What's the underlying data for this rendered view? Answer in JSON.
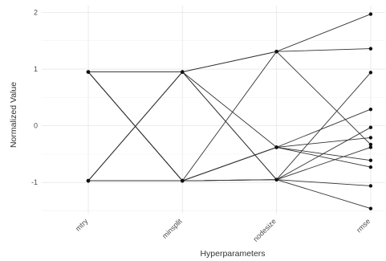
{
  "chart_data": {
    "type": "line",
    "title": "",
    "xlabel": "Hyperparameters",
    "ylabel": "Normalized Value",
    "categories": [
      "mtry",
      "minsplit",
      "nodesize",
      "rmse"
    ],
    "ylim": [
      -1.55,
      2.12
    ],
    "y_ticks": [
      -1,
      0,
      1,
      2
    ],
    "grid": true,
    "legend": "none",
    "colors": {
      "line": "#333333",
      "point": "#111111",
      "grid": "#e6e6e6"
    },
    "series": [
      {
        "values": [
          0.95,
          0.95,
          1.31,
          1.97
        ]
      },
      {
        "values": [
          0.95,
          0.95,
          1.31,
          1.36
        ]
      },
      {
        "values": [
          0.95,
          -0.97,
          1.31,
          -0.33
        ]
      },
      {
        "values": [
          0.95,
          -0.97,
          -0.38,
          -0.21
        ]
      },
      {
        "values": [
          0.95,
          -0.97,
          -0.38,
          -0.73
        ]
      },
      {
        "values": [
          0.95,
          -0.97,
          -0.95,
          0.94
        ]
      },
      {
        "values": [
          -0.97,
          0.95,
          -0.38,
          0.29
        ]
      },
      {
        "values": [
          -0.97,
          0.95,
          -0.95,
          -0.38
        ]
      },
      {
        "values": [
          -0.97,
          0.95,
          -0.95,
          -1.06
        ]
      },
      {
        "values": [
          -0.97,
          -0.97,
          -0.95,
          -1.46
        ]
      },
      {
        "values": [
          -0.97,
          -0.97,
          -0.95,
          -0.03
        ]
      },
      {
        "values": [
          -0.97,
          -0.97,
          -0.38,
          -0.61
        ]
      }
    ]
  }
}
